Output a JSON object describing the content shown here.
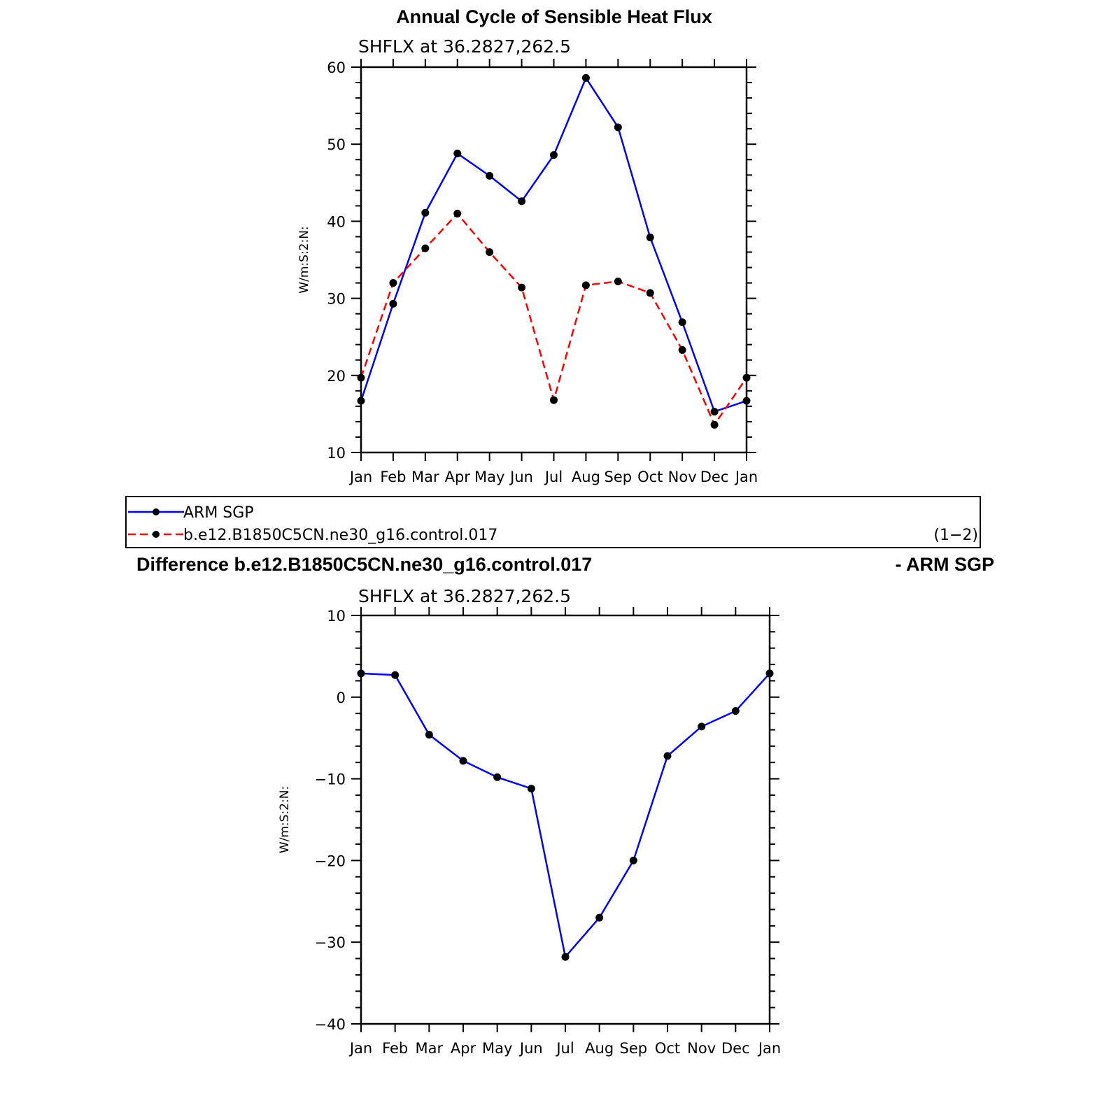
{
  "colors": {
    "series_obs": "#0000ff",
    "series_model": "#ff0000",
    "marker": "#000000"
  },
  "legend": {
    "entries": [
      "ARM SGP",
      "b.e12.B1850C5CN.ne30_g16.control.017"
    ],
    "note": "(1−2)"
  },
  "diff_title": {
    "left": "Difference b.e12.B1850C5CN.ne30_g16.control.017",
    "right": "- ARM SGP"
  },
  "chart_data": [
    {
      "type": "line",
      "title": "Annual Cycle of Sensible Heat Flux",
      "subtitle": "SHFLX  at  36.2827,262.5",
      "ylabel": "W/m:S:2:N:",
      "xlabel": "",
      "categories": [
        "Jan",
        "Feb",
        "Mar",
        "Apr",
        "May",
        "Jun",
        "Jul",
        "Aug",
        "Sep",
        "Oct",
        "Nov",
        "Dec",
        "Jan"
      ],
      "ylim": [
        10,
        60
      ],
      "yticks": [
        10,
        20,
        30,
        40,
        50,
        60
      ],
      "yticklabels": [
        "10",
        "20",
        "30",
        "40",
        "50",
        "60"
      ],
      "grid": false,
      "legend_position": "below",
      "series": [
        {
          "name": "ARM SGP",
          "style": "solid",
          "color": "#0000ff",
          "values": [
            16.7,
            29.3,
            41.1,
            48.8,
            45.9,
            42.6,
            48.6,
            58.6,
            52.2,
            37.9,
            26.9,
            15.3,
            16.7
          ]
        },
        {
          "name": "b.e12.B1850C5CN.ne30_g16.control.017",
          "style": "dashed",
          "color": "#ff0000",
          "values": [
            19.7,
            32.0,
            36.5,
            41.0,
            36.0,
            31.4,
            16.8,
            31.7,
            32.2,
            30.7,
            23.3,
            13.6,
            19.7
          ]
        }
      ]
    },
    {
      "type": "line",
      "title": "Difference b.e12.B1850C5CN.ne30_g16.control.017 - ARM SGP",
      "subtitle": "SHFLX  at  36.2827,262.5",
      "ylabel": "W/m:S:2:N:",
      "xlabel": "",
      "categories": [
        "Jan",
        "Feb",
        "Mar",
        "Apr",
        "May",
        "Jun",
        "Jul",
        "Aug",
        "Sep",
        "Oct",
        "Nov",
        "Dec",
        "Jan"
      ],
      "ylim": [
        -40,
        10
      ],
      "yticks": [
        -40,
        -30,
        -20,
        -10,
        0,
        10
      ],
      "yticklabels": [
        "−40",
        "−30",
        "−20",
        "−10",
        "0",
        "10"
      ],
      "grid": false,
      "series": [
        {
          "name": "",
          "style": "solid",
          "color": "#0000ff",
          "values": [
            2.9,
            2.7,
            -4.6,
            -7.8,
            -9.8,
            -11.2,
            -31.8,
            -27.0,
            -20.0,
            -7.2,
            -3.6,
            -1.7,
            2.9
          ]
        }
      ]
    }
  ]
}
